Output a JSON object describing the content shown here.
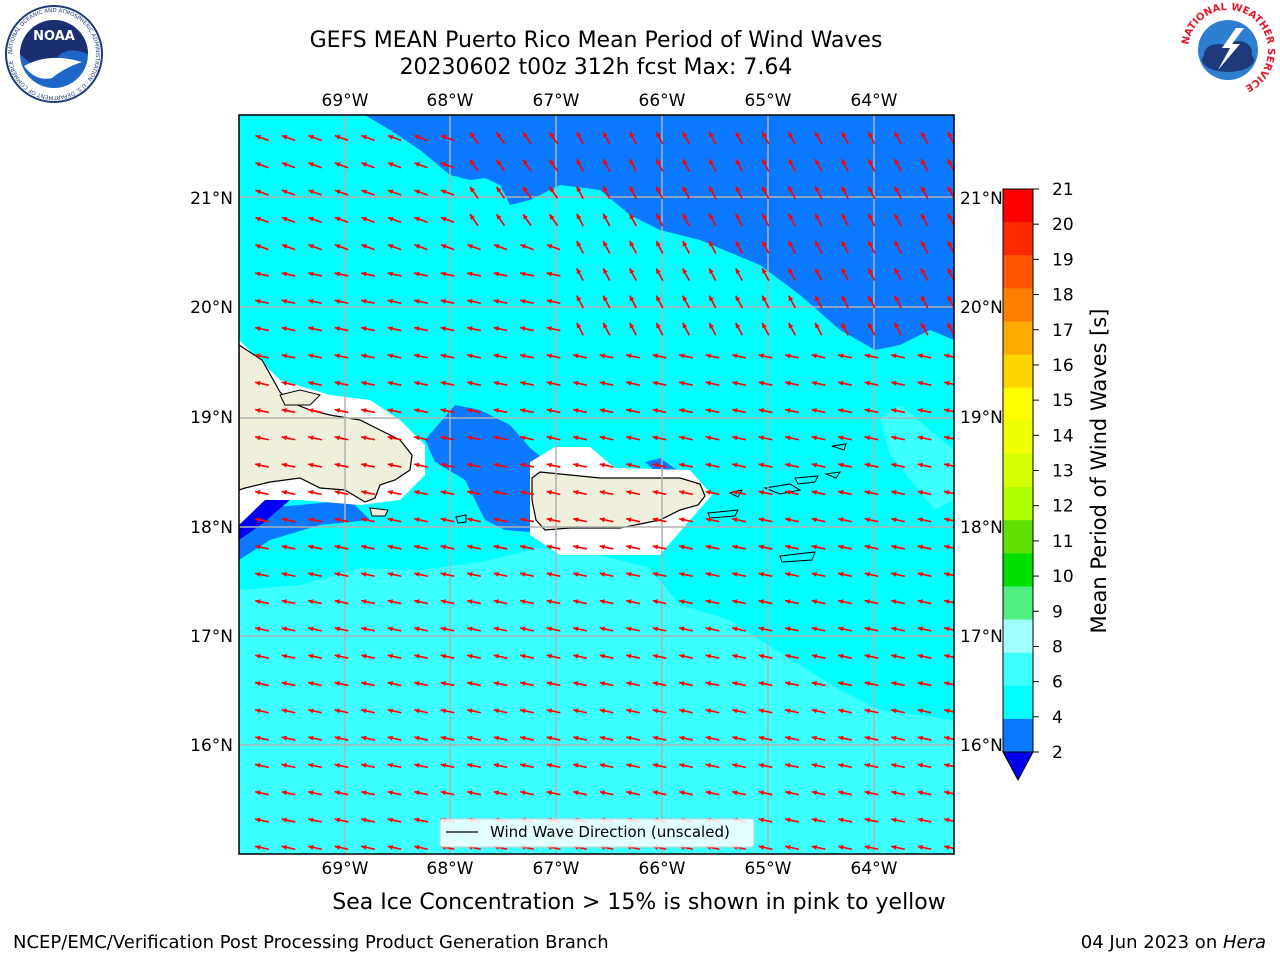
{
  "header": {
    "title_line1": "GEFS MEAN Puerto Rico Mean Period of Wind Waves",
    "title_line2": "20230602 t00z 312h fcst   Max: 7.64"
  },
  "map": {
    "lon_labels": [
      "69°W",
      "68°W",
      "67°W",
      "66°W",
      "65°W",
      "64°W"
    ],
    "lat_labels": [
      "21°N",
      "20°N",
      "19°N",
      "18°N",
      "17°N",
      "16°N"
    ],
    "legend_label": "Wind Wave Direction (unscaled)",
    "colors": {
      "land": "#efefdc",
      "band_2_4": "#0a78ff",
      "band_4_6": "#00ffff",
      "band_6_8": "#3cffff",
      "below_2": "#0000f0",
      "arrow": "#ff0000"
    }
  },
  "colorbar": {
    "label": "Mean Period of Wind Waves [s]",
    "ticks": [
      "21",
      "20",
      "19",
      "18",
      "17",
      "16",
      "15",
      "14",
      "13",
      "12",
      "11",
      "10",
      "9",
      "8",
      "6",
      "4",
      "2"
    ],
    "colors": [
      "#ff0000",
      "#ff2a00",
      "#ff5500",
      "#ff8000",
      "#ffaa00",
      "#ffd500",
      "#ffff00",
      "#eeff00",
      "#d4ff00",
      "#b0ff00",
      "#60e000",
      "#00e000",
      "#50f080",
      "#a0ffff",
      "#40ffff",
      "#00ffff",
      "#0a78ff"
    ],
    "underflow_color": "#0000ee"
  },
  "footer": {
    "caption": "Sea Ice Concentration > 15% is shown in pink to yellow",
    "credit": "NCEP/EMC/Verification Post Processing Product Generation Branch",
    "date": "04 Jun 2023 on ",
    "machine": "Hera"
  },
  "logos": {
    "noaa_text": "NOAA",
    "noaa_ring_text": "NATIONAL OCEANIC AND ATMOSPHERIC ADMINISTRATION · U.S. DEPARTMENT OF COMMERCE",
    "nws_ring_text": "NATIONAL WEATHER SERVICE"
  }
}
